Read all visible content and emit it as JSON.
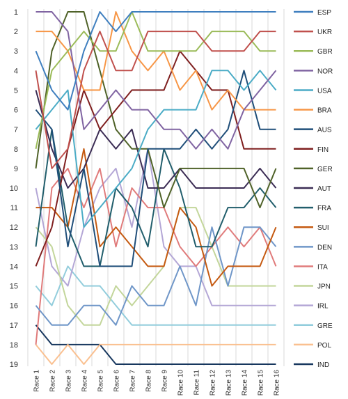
{
  "chart_data": {
    "type": "line",
    "title": "",
    "xlabel": "",
    "ylabel": "",
    "ylim": [
      19,
      1
    ],
    "y_inverted": true,
    "grid": "vertical",
    "legend_position": "right",
    "categories": [
      "Race 1",
      "Race 2",
      "Race 3",
      "Race 4",
      "Race 5",
      "Race 6",
      "Race 7",
      "Race 8",
      "Race 9",
      "Race 10",
      "Race 11",
      "Race 12",
      "Race 13",
      "Race 14",
      "Race 15",
      "Race 16"
    ],
    "y_ticks": [
      "1",
      "2",
      "3",
      "4",
      "5",
      "6",
      "7",
      "8",
      "9",
      "10",
      "11",
      "12",
      "13",
      "14",
      "15",
      "16",
      "17",
      "18",
      "19"
    ],
    "series": [
      {
        "name": "ESP",
        "color": "#3f7fbf",
        "values": [
          3,
          5,
          6,
          3,
          1,
          2,
          1,
          1,
          1,
          1,
          1,
          1,
          1,
          1,
          1,
          1
        ]
      },
      {
        "name": "UKR",
        "color": "#c0504d",
        "values": [
          4,
          9,
          8,
          4,
          2,
          4,
          4,
          2,
          2,
          2,
          2,
          3,
          3,
          3,
          2,
          2
        ]
      },
      {
        "name": "GBR",
        "color": "#9bbb59",
        "values": [
          8,
          4,
          3,
          2,
          3,
          3,
          1,
          3,
          3,
          3,
          3,
          2,
          2,
          2,
          3,
          3
        ]
      },
      {
        "name": "NOR",
        "color": "#8064a2",
        "values": [
          1,
          1,
          2,
          7,
          6,
          5,
          6,
          6,
          7,
          7,
          8,
          7,
          8,
          6,
          5,
          4
        ]
      },
      {
        "name": "USA",
        "color": "#4bacc6",
        "values": [
          7,
          6,
          5,
          12,
          11,
          10,
          9,
          7,
          6,
          6,
          6,
          4,
          4,
          5,
          4,
          5
        ]
      },
      {
        "name": "BRA",
        "color": "#f79646",
        "values": [
          2,
          2,
          3,
          5,
          5,
          1,
          3,
          4,
          3,
          5,
          4,
          6,
          5,
          6,
          6,
          6
        ]
      },
      {
        "name": "AUS",
        "color": "#1f4e79",
        "values": [
          6,
          7,
          13,
          9,
          14,
          14,
          14,
          8,
          8,
          8,
          7,
          8,
          7,
          4,
          7,
          7
        ]
      },
      {
        "name": "FIN",
        "color": "#7f1f1f",
        "values": [
          14,
          12,
          8,
          5,
          7,
          6,
          5,
          5,
          5,
          3,
          4,
          5,
          5,
          8,
          8,
          8
        ]
      },
      {
        "name": "GER",
        "color": "#4f6228",
        "values": [
          9,
          3,
          1,
          1,
          4,
          7,
          8,
          8,
          11,
          9,
          9,
          9,
          9,
          9,
          11,
          9
        ]
      },
      {
        "name": "AUT",
        "color": "#3b2c54",
        "values": [
          5,
          8,
          10,
          9,
          7,
          8,
          7,
          10,
          10,
          9,
          10,
          10,
          10,
          10,
          9,
          10
        ]
      },
      {
        "name": "FRA",
        "color": "#215e6c",
        "values": [
          13,
          7,
          12,
          14,
          14,
          10,
          11,
          13,
          8,
          10,
          13,
          13,
          11,
          11,
          10,
          11
        ]
      },
      {
        "name": "SUI",
        "color": "#c55a11",
        "values": [
          11,
          11,
          12,
          8,
          13,
          12,
          13,
          14,
          14,
          11,
          12,
          15,
          14,
          14,
          14,
          12
        ]
      },
      {
        "name": "DEN",
        "color": "#6f96c8",
        "values": [
          16,
          17,
          17,
          16,
          16,
          17,
          15,
          16,
          16,
          14,
          16,
          12,
          15,
          12,
          12,
          13
        ]
      },
      {
        "name": "ITA",
        "color": "#e07b7b",
        "values": [
          18,
          10,
          9,
          11,
          9,
          13,
          10,
          11,
          11,
          13,
          14,
          13,
          12,
          13,
          12,
          14
        ]
      },
      {
        "name": "JPN",
        "color": "#c3d69b",
        "values": [
          12,
          13,
          16,
          17,
          17,
          15,
          16,
          15,
          14,
          11,
          11,
          13,
          15,
          15,
          15,
          15
        ]
      },
      {
        "name": "IRL",
        "color": "#b4a7d6",
        "values": [
          10,
          14,
          15,
          12,
          10,
          9,
          12,
          8,
          13,
          14,
          14,
          16,
          16,
          16,
          16,
          16
        ]
      },
      {
        "name": "GRE",
        "color": "#92cddc",
        "values": [
          15,
          16,
          14,
          15,
          15,
          16,
          17,
          17,
          17,
          17,
          17,
          17,
          17,
          17,
          17,
          17
        ]
      },
      {
        "name": "POL",
        "color": "#fac090",
        "values": [
          18,
          19,
          18,
          19,
          18,
          18,
          18,
          18,
          18,
          18,
          18,
          18,
          18,
          18,
          18,
          18
        ]
      },
      {
        "name": "IND",
        "color": "#17375e",
        "values": [
          17,
          18,
          18,
          18,
          18,
          19,
          19,
          19,
          19,
          19,
          19,
          19,
          19,
          19,
          19,
          19
        ]
      }
    ]
  }
}
